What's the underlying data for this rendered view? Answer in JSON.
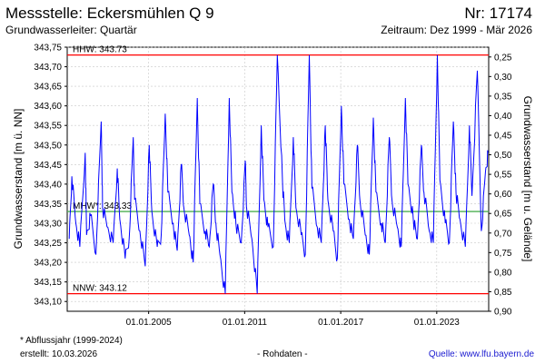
{
  "header": {
    "title": "Messstelle: Eckersmühlen Q 9",
    "number": "Nr: 17174",
    "aquifer": "Grundwasserleiter: Quartär",
    "period": "Zeitraum: Dez 1999 - Mär 2026"
  },
  "footer": {
    "note": "* Abflussjahr (1999-2024)",
    "created": "erstellt:  10.03.2026",
    "raw": "- Rohdaten -",
    "source": "Quelle: www.lfu.bayern.de"
  },
  "colors": {
    "series": "#0000ff",
    "extreme_lines": "#ff0000",
    "mean_line": "#4caf50",
    "grid": "#c8c8c8"
  },
  "chart_data": {
    "type": "line",
    "ylabel_left": "Grundwasserstand [m ü. NN]",
    "ylabel_right": "Grundwasserstand [m u. Gelände]",
    "ylim_left": [
      343.075,
      343.75
    ],
    "ylim_right": [
      0.9,
      0.225
    ],
    "xlim": [
      "1999-12-01",
      "2026-03-31"
    ],
    "yticks_left": [
      "343,75",
      "343,70",
      "343,65",
      "343,60",
      "343,55",
      "343,50",
      "343,45",
      "343,40",
      "343,35",
      "343,30",
      "343,25",
      "343,20",
      "343,15",
      "343,10"
    ],
    "yticks_left_values": [
      343.75,
      343.7,
      343.65,
      343.6,
      343.55,
      343.5,
      343.45,
      343.4,
      343.35,
      343.3,
      343.25,
      343.2,
      343.15,
      343.1
    ],
    "yticks_right": [
      "0,25",
      "0,30",
      "0,35",
      "0,40",
      "0,45",
      "0,50",
      "0,55",
      "0,60",
      "0,65",
      "0,70",
      "0,75",
      "0,80",
      "0,85",
      "0,90"
    ],
    "yticks_right_values": [
      0.25,
      0.3,
      0.35,
      0.4,
      0.45,
      0.5,
      0.55,
      0.6,
      0.65,
      0.7,
      0.75,
      0.8,
      0.85,
      0.9
    ],
    "xticks": [
      "01.01.2005",
      "01.01.2011",
      "01.01.2017",
      "01.01.2023"
    ],
    "xticks_dates": [
      "2005-01-01",
      "2011-01-01",
      "2017-01-01",
      "2023-01-01"
    ],
    "grid": true,
    "reference_lines": [
      {
        "label": "HHW: 343.73",
        "value": 343.73
      },
      {
        "label": "MHW*: 343.33",
        "value": 343.33
      },
      {
        "label": "NNW: 343.12",
        "value": 343.12
      }
    ],
    "series": [
      {
        "x": [
          "2000-01",
          "2000-03",
          "2000-06",
          "2000-09",
          "2001-01",
          "2001-02",
          "2001-05",
          "2001-09",
          "2002-01",
          "2002-02",
          "2002-06",
          "2002-10",
          "2003-01",
          "2003-03",
          "2003-07",
          "2003-10",
          "2004-01",
          "2004-02",
          "2004-06",
          "2004-10",
          "2005-01",
          "2005-03",
          "2005-07",
          "2005-10",
          "2006-01",
          "2006-03",
          "2006-07",
          "2006-10",
          "2007-01",
          "2007-03",
          "2007-07",
          "2007-10",
          "2008-01",
          "2008-03",
          "2008-07",
          "2008-10",
          "2009-01",
          "2009-03",
          "2009-06",
          "2009-10",
          "2010-01",
          "2010-03",
          "2010-06",
          "2010-10",
          "2011-01",
          "2011-02",
          "2011-06",
          "2011-10",
          "2012-01",
          "2012-03",
          "2012-06",
          "2012-10",
          "2013-01",
          "2013-05",
          "2013-07",
          "2013-10",
          "2014-01",
          "2014-03",
          "2014-07",
          "2014-10",
          "2015-01",
          "2015-03",
          "2015-07",
          "2015-10",
          "2016-01",
          "2016-03",
          "2016-07",
          "2016-10",
          "2017-01",
          "2017-03",
          "2017-07",
          "2017-10",
          "2018-01",
          "2018-03",
          "2018-07",
          "2018-10",
          "2019-01",
          "2019-03",
          "2019-07",
          "2019-10",
          "2020-01",
          "2020-03",
          "2020-07",
          "2020-10",
          "2021-01",
          "2021-03",
          "2021-07",
          "2021-10",
          "2022-01",
          "2022-03",
          "2022-07",
          "2022-10",
          "2023-01",
          "2023-03",
          "2023-07",
          "2023-10",
          "2024-01",
          "2024-03",
          "2024-06",
          "2024-10",
          "2025-01",
          "2025-03",
          "2025-07",
          "2025-10",
          "2026-01",
          "2026-03"
        ],
        "y": [
          343.26,
          343.42,
          343.3,
          343.24,
          343.48,
          343.27,
          343.32,
          343.22,
          343.56,
          343.34,
          343.29,
          343.25,
          343.44,
          343.31,
          343.21,
          343.26,
          343.52,
          343.36,
          343.28,
          343.19,
          343.5,
          343.33,
          343.24,
          343.27,
          343.58,
          343.38,
          343.3,
          343.23,
          343.45,
          343.34,
          343.27,
          343.2,
          343.62,
          343.35,
          343.28,
          343.24,
          343.4,
          343.3,
          343.22,
          343.12,
          343.62,
          343.38,
          343.3,
          343.25,
          343.46,
          343.34,
          343.26,
          343.12,
          343.55,
          343.36,
          343.29,
          343.24,
          343.73,
          343.4,
          343.3,
          343.25,
          343.52,
          343.34,
          343.27,
          343.22,
          343.73,
          343.39,
          343.29,
          343.25,
          343.55,
          343.36,
          343.28,
          343.21,
          343.6,
          343.4,
          343.31,
          343.26,
          343.5,
          343.36,
          343.27,
          343.22,
          343.57,
          343.38,
          343.3,
          343.25,
          343.52,
          343.36,
          343.29,
          343.24,
          343.62,
          343.4,
          343.31,
          343.26,
          343.5,
          343.38,
          343.28,
          343.25,
          343.73,
          343.41,
          343.3,
          343.25,
          343.56,
          343.38,
          343.31,
          343.24,
          343.55,
          343.37,
          343.69,
          343.28,
          343.43,
          343.48
        ]
      }
    ]
  }
}
